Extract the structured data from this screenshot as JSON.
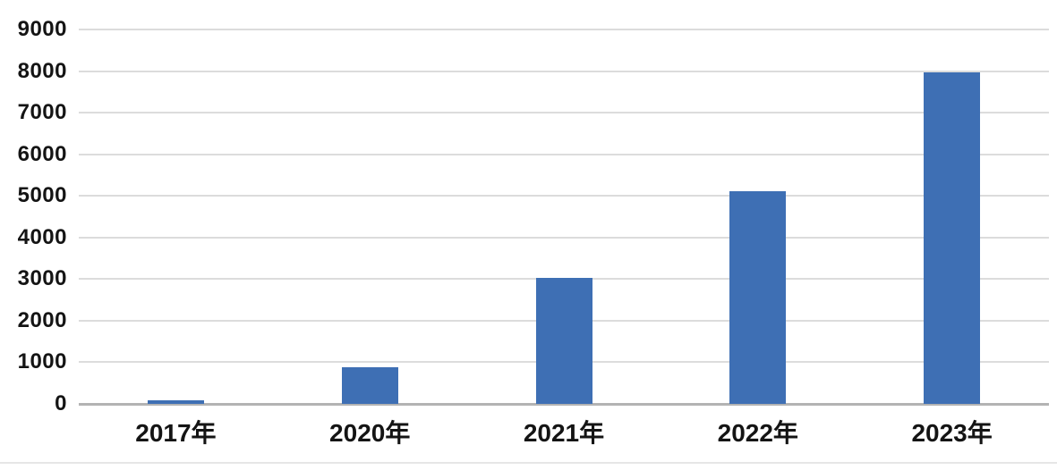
{
  "chart_data": {
    "type": "bar",
    "title": "",
    "xlabel": "",
    "ylabel": "",
    "categories": [
      "2017年",
      "2020年",
      "2021年",
      "2022年",
      "2023年"
    ],
    "values": [
      90,
      890,
      3020,
      5120,
      7970
    ],
    "ylim": [
      0,
      9000
    ],
    "ytick_interval": 1000,
    "yticks": [
      0,
      1000,
      2000,
      3000,
      4000,
      5000,
      6000,
      7000,
      8000,
      9000
    ],
    "grid": true,
    "legend": false,
    "bar_color": "#3e6fb4",
    "gridline_color": "#dcdcdc",
    "zero_line_color": "#b3b3b3",
    "text_color": "#141414",
    "background": "#ffffff"
  }
}
